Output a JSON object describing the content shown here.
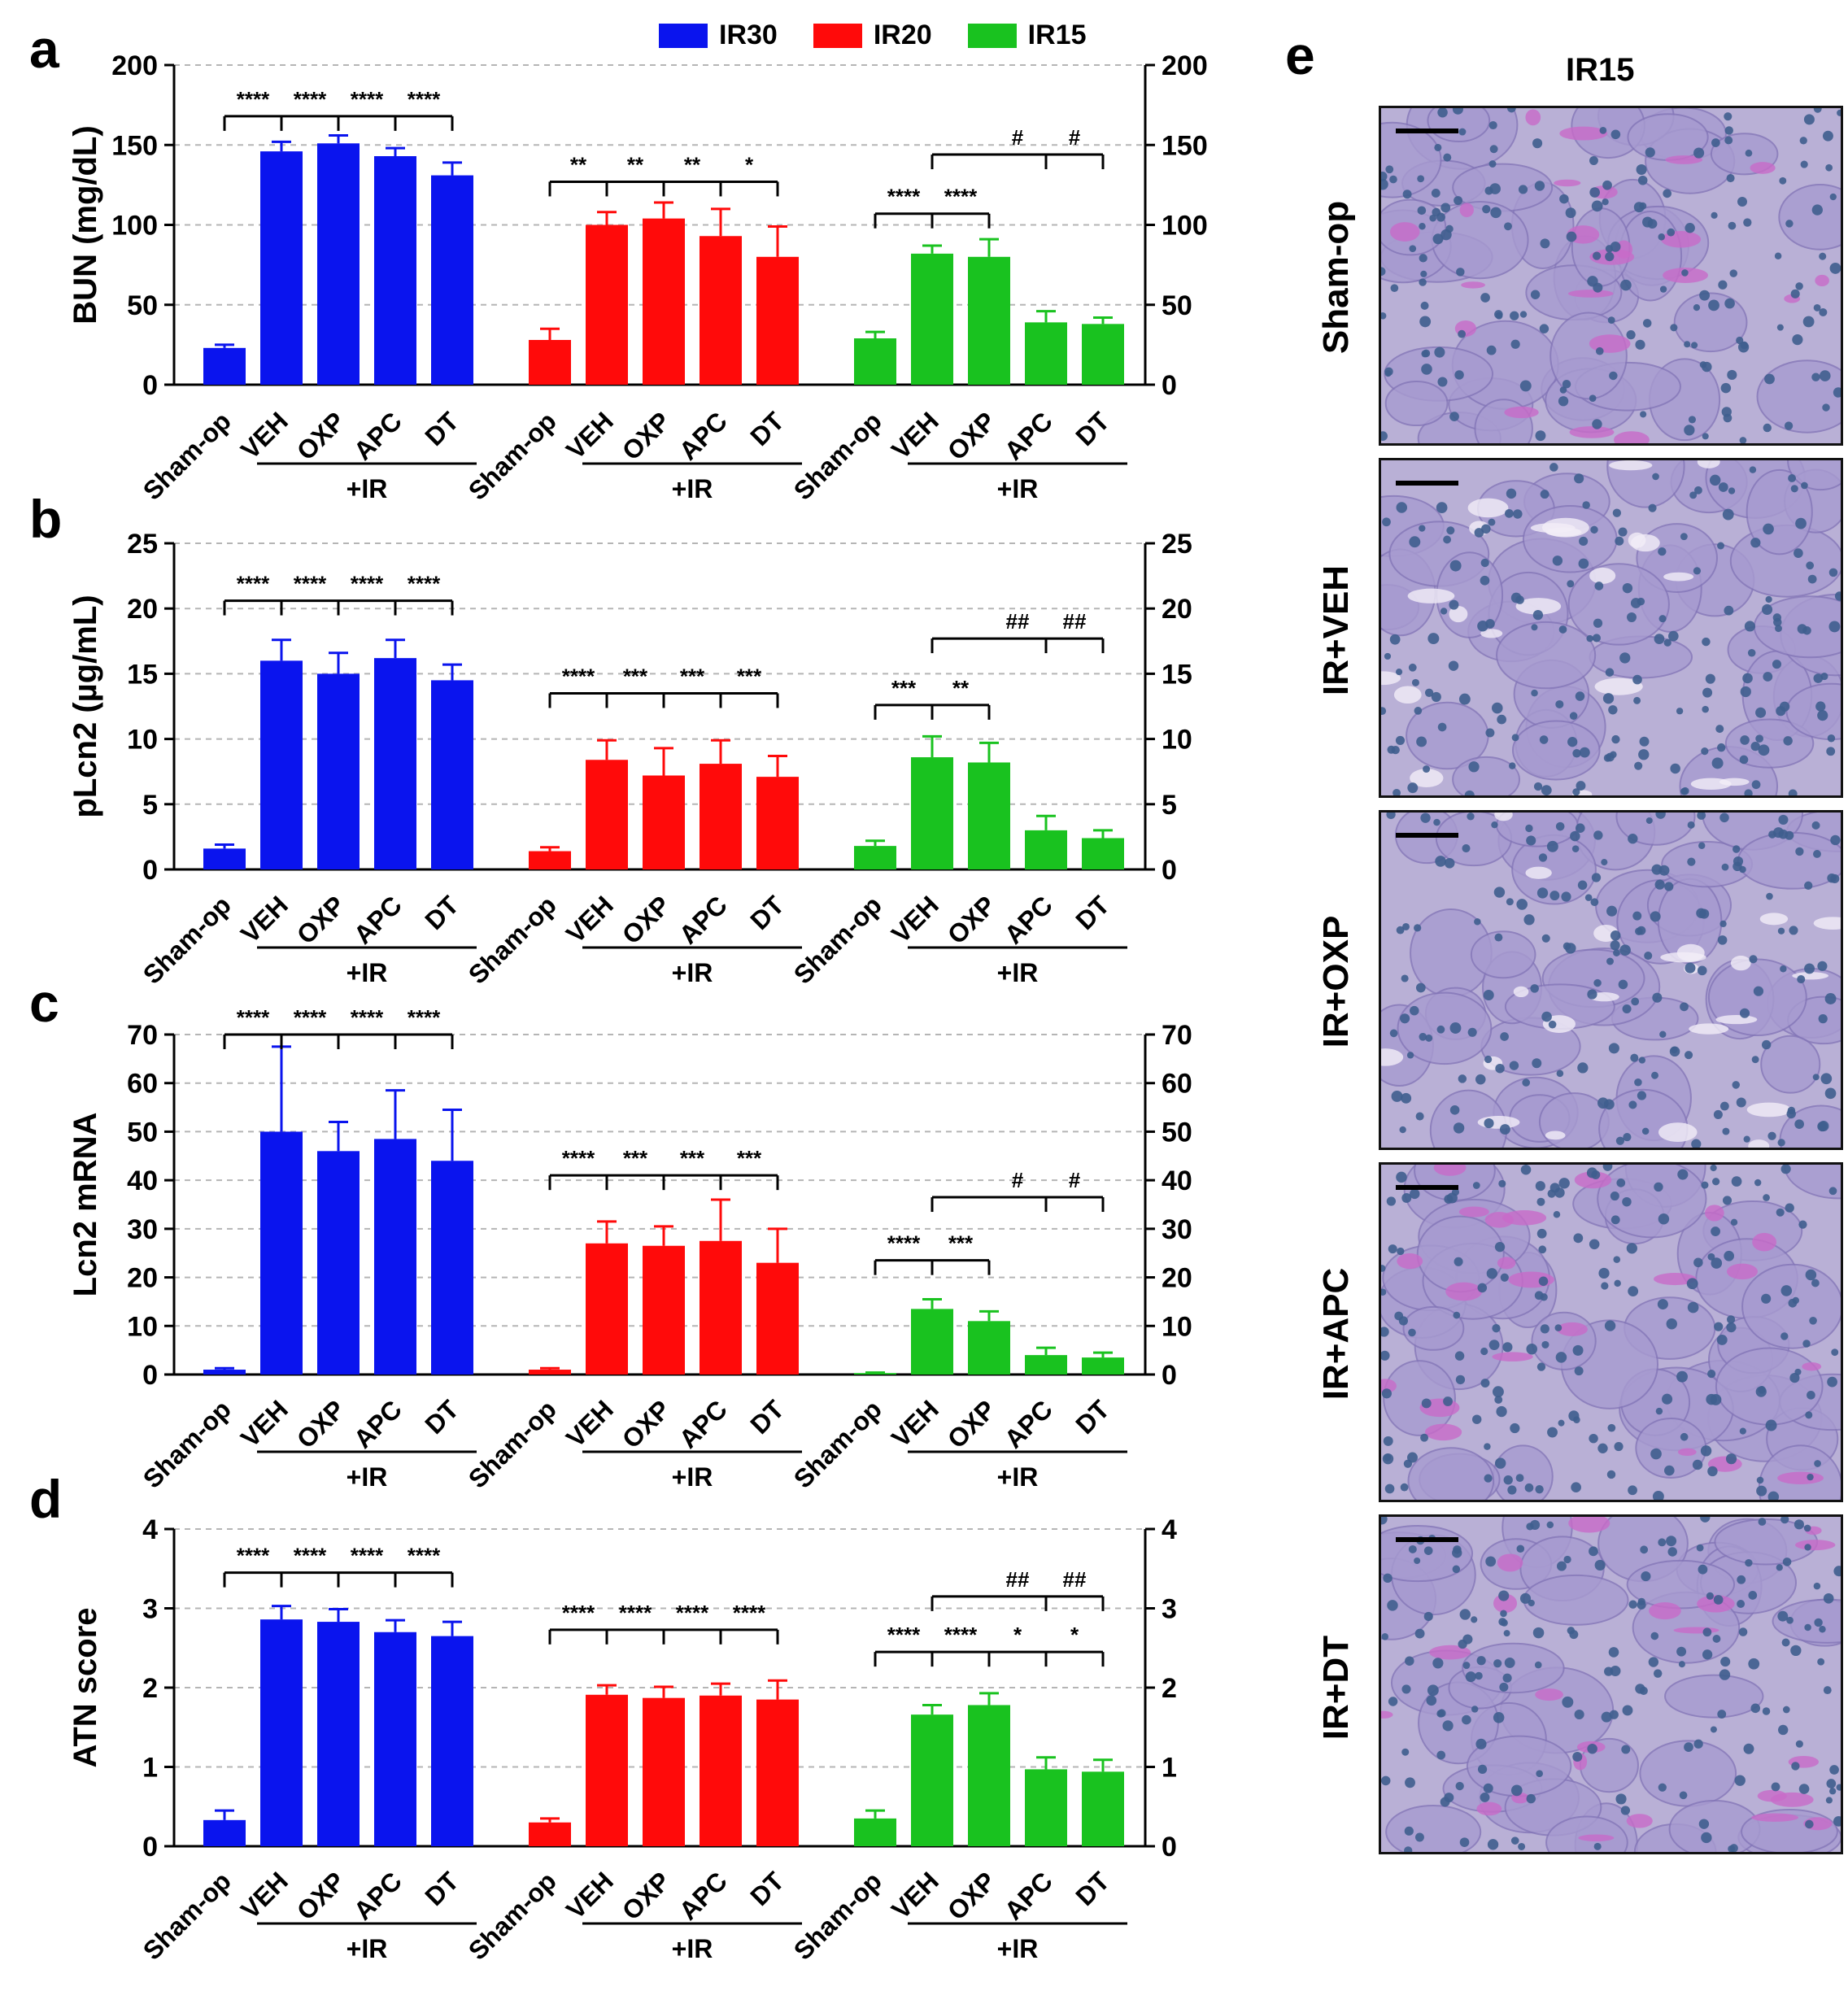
{
  "legend": {
    "entries": [
      {
        "label": "IR30",
        "color": "#0a14ee"
      },
      {
        "label": "IR20",
        "color": "#ff0a0a"
      },
      {
        "label": "IR15",
        "color": "#19c21f"
      }
    ]
  },
  "panel_letters": [
    "a",
    "b",
    "c",
    "d",
    "e"
  ],
  "microscopy": {
    "title": "IR15",
    "rows": [
      "Sham-op",
      "IR+VEH",
      "IR+OXP",
      "IR+APC",
      "IR+DT"
    ]
  },
  "chart_data": [
    {
      "type": "bar",
      "panel": "a",
      "ylabel": "BUN (mg/dL)",
      "ylim": [
        0,
        200
      ],
      "yticks": [
        0,
        50,
        100,
        150,
        200
      ],
      "grid": true,
      "groups": [
        {
          "name": "IR30",
          "color": "#0a14ee",
          "categories": [
            "Sham-op",
            "VEH",
            "OXP",
            "APC",
            "DT"
          ],
          "values": [
            23,
            146,
            151,
            143,
            131
          ],
          "errors": [
            2,
            6,
            5,
            5,
            8
          ],
          "bracket_label": "+IR",
          "sig": [
            {
              "from": 0,
              "to": 4,
              "y": 168,
              "labels": [
                "****",
                "****",
                "****",
                "****"
              ],
              "ticks": [
                1,
                2,
                3,
                4
              ]
            }
          ]
        },
        {
          "name": "IR20",
          "color": "#ff0a0a",
          "categories": [
            "Sham-op",
            "VEH",
            "OXP",
            "APC",
            "DT"
          ],
          "values": [
            28,
            100,
            104,
            93,
            80
          ],
          "errors": [
            7,
            8,
            10,
            17,
            19
          ],
          "bracket_label": "+IR",
          "sig": [
            {
              "from": 0,
              "to": 4,
              "y": 127,
              "labels": [
                "**",
                "**",
                "**",
                "*"
              ],
              "ticks": [
                1,
                2,
                3,
                4
              ]
            }
          ]
        },
        {
          "name": "IR15",
          "color": "#19c21f",
          "categories": [
            "Sham-op",
            "VEH",
            "OXP",
            "APC",
            "DT"
          ],
          "values": [
            29,
            82,
            80,
            39,
            38
          ],
          "errors": [
            4,
            5,
            11,
            7,
            4
          ],
          "bracket_label": "+IR",
          "sig": [
            {
              "from": 0,
              "to": 2,
              "y": 107,
              "labels": [
                "****",
                "****"
              ],
              "ticks": [
                1,
                2
              ]
            },
            {
              "from": 1,
              "to": 4,
              "y": 144,
              "labels": [
                "#",
                "#"
              ],
              "ticks": [
                3,
                4
              ]
            }
          ]
        }
      ]
    },
    {
      "type": "bar",
      "panel": "b",
      "ylabel": "pLcn2 (µg/mL)",
      "ylim": [
        0,
        25
      ],
      "yticks": [
        0,
        5,
        10,
        15,
        20,
        25
      ],
      "grid": true,
      "groups": [
        {
          "name": "IR30",
          "color": "#0a14ee",
          "categories": [
            "Sham-op",
            "VEH",
            "OXP",
            "APC",
            "DT"
          ],
          "values": [
            1.6,
            16.0,
            15.0,
            16.2,
            14.5
          ],
          "errors": [
            0.3,
            1.6,
            1.6,
            1.4,
            1.2
          ],
          "bracket_label": "+IR",
          "sig": [
            {
              "from": 0,
              "to": 4,
              "y": 20.6,
              "labels": [
                "****",
                "****",
                "****",
                "****"
              ],
              "ticks": [
                1,
                2,
                3,
                4
              ]
            }
          ]
        },
        {
          "name": "IR20",
          "color": "#ff0a0a",
          "categories": [
            "Sham-op",
            "VEH",
            "OXP",
            "APC",
            "DT"
          ],
          "values": [
            1.4,
            8.4,
            7.2,
            8.1,
            7.1
          ],
          "errors": [
            0.3,
            1.5,
            2.1,
            1.8,
            1.6
          ],
          "bracket_label": "+IR",
          "sig": [
            {
              "from": 0,
              "to": 4,
              "y": 13.5,
              "labels": [
                "****",
                "***",
                "***",
                "***"
              ],
              "ticks": [
                1,
                2,
                3,
                4
              ]
            }
          ]
        },
        {
          "name": "IR15",
          "color": "#19c21f",
          "categories": [
            "Sham-op",
            "VEH",
            "OXP",
            "APC",
            "DT"
          ],
          "values": [
            1.8,
            8.6,
            8.2,
            3.0,
            2.4
          ],
          "errors": [
            0.4,
            1.6,
            1.5,
            1.1,
            0.6
          ],
          "bracket_label": "+IR",
          "sig": [
            {
              "from": 0,
              "to": 2,
              "y": 12.6,
              "labels": [
                "***",
                "**"
              ],
              "ticks": [
                1,
                2
              ]
            },
            {
              "from": 1,
              "to": 4,
              "y": 17.7,
              "labels": [
                "##",
                "##"
              ],
              "ticks": [
                3,
                4
              ]
            }
          ]
        }
      ]
    },
    {
      "type": "bar",
      "panel": "c",
      "ylabel": "Lcn2 mRNA",
      "ylim": [
        0,
        70
      ],
      "yticks": [
        0,
        10,
        20,
        30,
        40,
        50,
        60,
        70
      ],
      "grid": true,
      "groups": [
        {
          "name": "IR30",
          "color": "#0a14ee",
          "categories": [
            "Sham-op",
            "VEH",
            "OXP",
            "APC",
            "DT"
          ],
          "values": [
            1.0,
            50.0,
            46.0,
            48.5,
            44.0
          ],
          "errors": [
            0.3,
            17.5,
            6.0,
            10.0,
            10.5
          ],
          "bracket_label": "+IR",
          "sig": [
            {
              "from": 0,
              "to": 4,
              "y": 70,
              "labels": [
                "****",
                "****",
                "****",
                "****"
              ],
              "ticks": [
                1,
                2,
                3,
                4
              ]
            }
          ]
        },
        {
          "name": "IR20",
          "color": "#ff0a0a",
          "categories": [
            "Sham-op",
            "VEH",
            "OXP",
            "APC",
            "DT"
          ],
          "values": [
            1.0,
            27.0,
            26.5,
            27.5,
            23.0
          ],
          "errors": [
            0.3,
            4.5,
            4.0,
            8.5,
            7.0
          ],
          "bracket_label": "+IR",
          "sig": [
            {
              "from": 0,
              "to": 4,
              "y": 41,
              "labels": [
                "****",
                "***",
                "***",
                "***"
              ],
              "ticks": [
                1,
                2,
                3,
                4
              ]
            }
          ]
        },
        {
          "name": "IR15",
          "color": "#19c21f",
          "categories": [
            "Sham-op",
            "VEH",
            "OXP",
            "APC",
            "DT"
          ],
          "values": [
            0.3,
            13.5,
            11.0,
            4.0,
            3.5
          ],
          "errors": [
            0.1,
            2.0,
            2.0,
            1.5,
            1.0
          ],
          "bracket_label": "+IR",
          "sig": [
            {
              "from": 0,
              "to": 2,
              "y": 23.5,
              "labels": [
                "****",
                "***"
              ],
              "ticks": [
                1,
                2
              ]
            },
            {
              "from": 1,
              "to": 4,
              "y": 36.5,
              "labels": [
                "#",
                "#"
              ],
              "ticks": [
                3,
                4
              ]
            }
          ]
        }
      ]
    },
    {
      "type": "bar",
      "panel": "d",
      "ylabel": "ATN score",
      "ylim": [
        0,
        4
      ],
      "yticks": [
        0,
        1,
        2,
        3,
        4
      ],
      "grid": true,
      "groups": [
        {
          "name": "IR30",
          "color": "#0a14ee",
          "categories": [
            "Sham-op",
            "VEH",
            "OXP",
            "APC",
            "DT"
          ],
          "values": [
            0.33,
            2.86,
            2.83,
            2.7,
            2.65
          ],
          "errors": [
            0.12,
            0.17,
            0.16,
            0.15,
            0.18
          ],
          "bracket_label": "+IR",
          "sig": [
            {
              "from": 0,
              "to": 4,
              "y": 3.45,
              "labels": [
                "****",
                "****",
                "****",
                "****"
              ],
              "ticks": [
                1,
                2,
                3,
                4
              ]
            }
          ]
        },
        {
          "name": "IR20",
          "color": "#ff0a0a",
          "categories": [
            "Sham-op",
            "VEH",
            "OXP",
            "APC",
            "DT"
          ],
          "values": [
            0.3,
            1.91,
            1.87,
            1.9,
            1.85
          ],
          "errors": [
            0.05,
            0.12,
            0.14,
            0.15,
            0.24
          ],
          "bracket_label": "+IR",
          "sig": [
            {
              "from": 0,
              "to": 4,
              "y": 2.73,
              "labels": [
                "****",
                "****",
                "****",
                "****"
              ],
              "ticks": [
                1,
                2,
                3,
                4
              ]
            }
          ]
        },
        {
          "name": "IR15",
          "color": "#19c21f",
          "categories": [
            "Sham-op",
            "VEH",
            "OXP",
            "APC",
            "DT"
          ],
          "values": [
            0.35,
            1.66,
            1.78,
            0.97,
            0.94
          ],
          "errors": [
            0.1,
            0.12,
            0.15,
            0.15,
            0.15
          ],
          "bracket_label": "+IR",
          "sig": [
            {
              "from": 0,
              "to": 2,
              "y": 2.45,
              "labels": [
                "****",
                "****"
              ],
              "ticks": [
                1,
                2
              ]
            },
            {
              "from": 2,
              "to": 4,
              "y": 2.45,
              "labels": [
                "*",
                "*"
              ],
              "ticks": [
                3,
                4
              ]
            },
            {
              "from": 1,
              "to": 4,
              "y": 3.15,
              "labels": [
                "##",
                "##"
              ],
              "ticks": [
                3,
                4
              ]
            }
          ]
        }
      ]
    }
  ]
}
